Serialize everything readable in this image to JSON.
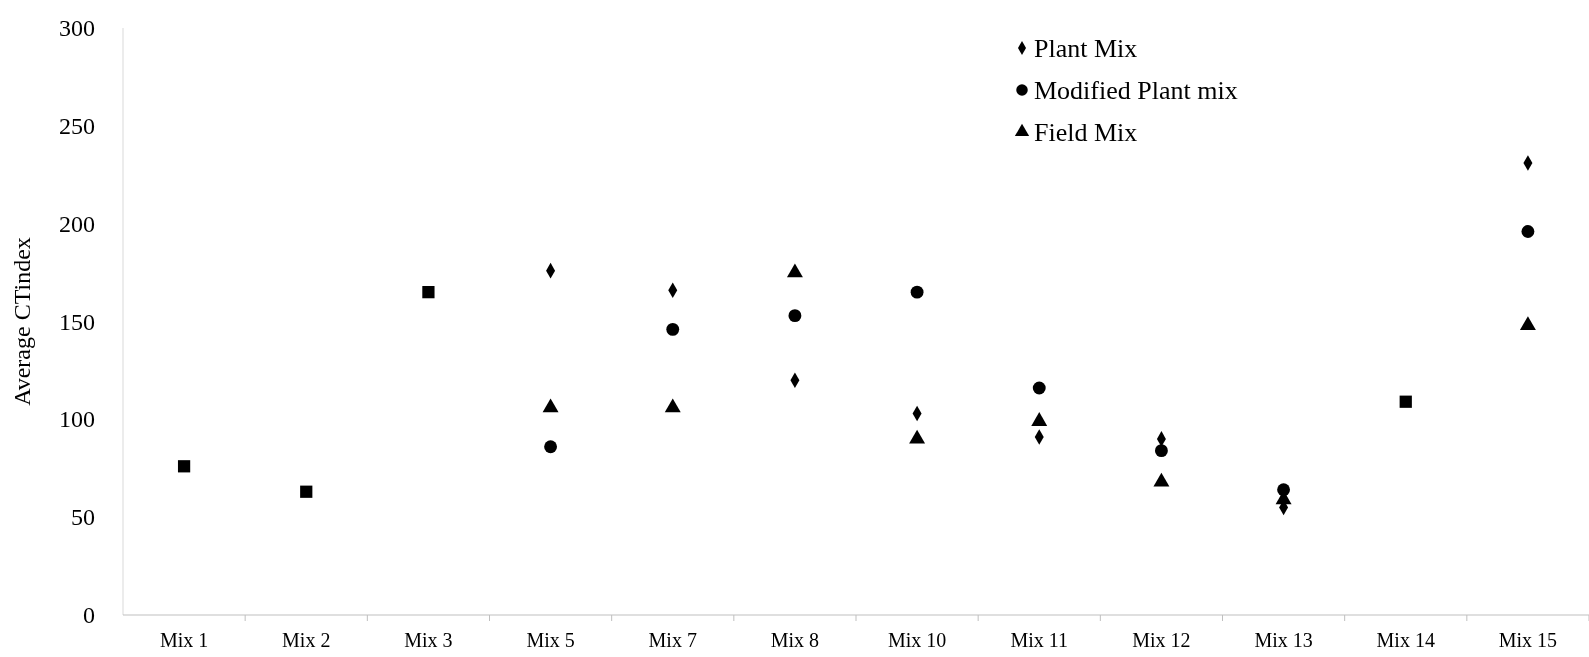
{
  "chart_data": {
    "type": "scatter",
    "ylabel": "Average CTindex",
    "categories": [
      "Mix 1",
      "Mix 2",
      "Mix 3",
      "Mix 5",
      "Mix 7",
      "Mix 8",
      "Mix 10",
      "Mix 11",
      "Mix 12",
      "Mix 13",
      "Mix 14",
      "Mix 15"
    ],
    "ylim": [
      0,
      300
    ],
    "yticks": [
      0,
      50,
      100,
      150,
      200,
      250,
      300
    ],
    "legend": "top right",
    "grid": false,
    "series": [
      {
        "name": "Plant Mix",
        "color": "#000000",
        "marker": "diamond",
        "values": [
          null,
          null,
          null,
          176,
          166,
          120,
          103,
          91,
          90,
          55,
          null,
          231
        ]
      },
      {
        "name": "Modified Plant mix",
        "color": "#000000",
        "marker": "circle",
        "values": [
          null,
          null,
          null,
          86,
          146,
          153,
          165,
          116,
          84,
          64,
          null,
          196
        ]
      },
      {
        "name": "Field Mix",
        "color": "#000000",
        "marker": "triangle",
        "values": [
          null,
          null,
          null,
          106,
          106,
          175,
          90,
          99,
          68,
          59,
          null,
          148
        ]
      },
      {
        "color": "#000000",
        "marker": "square",
        "values": [
          76,
          63,
          165,
          null,
          null,
          null,
          null,
          null,
          null,
          null,
          109,
          null
        ]
      }
    ]
  }
}
